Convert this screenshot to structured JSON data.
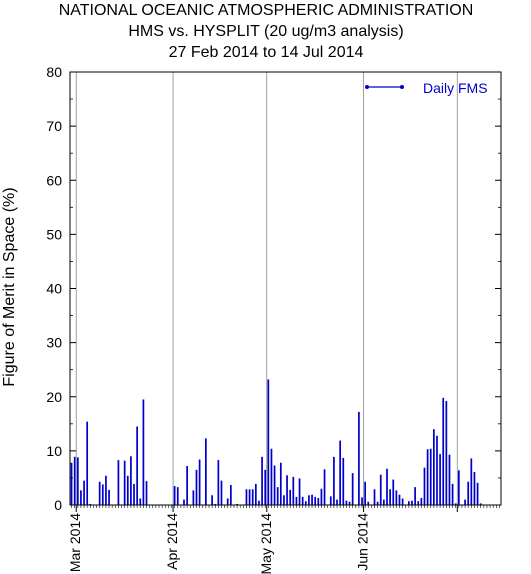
{
  "chart_data": {
    "type": "bar",
    "title": [
      "NATIONAL OCEANIC ATMOSPHERIC ADMINISTRATION",
      "HMS vs. HYSPLIT (20 ug/m3 analysis)",
      "27 Feb 2014 to 14 Jul 2014"
    ],
    "xlabel": "",
    "ylabel": "Figure of Merit in Space (%)",
    "ylim": [
      0,
      80
    ],
    "yticks": [
      0,
      10,
      20,
      30,
      40,
      50,
      60,
      70,
      80
    ],
    "x_start": "2014-02-27",
    "x_end": "2014-07-14",
    "month_ticks": [
      {
        "date": "2014-03-01",
        "label": "Mar 2014"
      },
      {
        "date": "2014-04-01",
        "label": "Apr 2014"
      },
      {
        "date": "2014-05-01",
        "label": "May 2014"
      },
      {
        "date": "2014-06-01",
        "label": "Jun 2014"
      },
      {
        "date": "2014-07-01",
        "label": ""
      }
    ],
    "grid": "vertical-monthly",
    "legend_position": "top-right",
    "series": [
      {
        "name": "Daily FMS",
        "color": "#0000cc",
        "x": [
          "2014-02-27",
          "2014-02-28",
          "2014-03-01",
          "2014-03-02",
          "2014-03-03",
          "2014-03-04",
          "2014-03-05",
          "2014-03-08",
          "2014-03-09",
          "2014-03-10",
          "2014-03-11",
          "2014-03-14",
          "2014-03-16",
          "2014-03-17",
          "2014-03-18",
          "2014-03-19",
          "2014-03-20",
          "2014-03-21",
          "2014-03-22",
          "2014-03-23",
          "2014-04-01",
          "2014-04-02",
          "2014-04-04",
          "2014-04-05",
          "2014-04-07",
          "2014-04-08",
          "2014-04-09",
          "2014-04-11",
          "2014-04-13",
          "2014-04-14",
          "2014-04-15",
          "2014-04-16",
          "2014-04-18",
          "2014-04-19",
          "2014-04-21",
          "2014-04-24",
          "2014-04-25",
          "2014-04-26",
          "2014-04-27",
          "2014-04-28",
          "2014-04-29",
          "2014-04-30",
          "2014-05-01",
          "2014-05-02",
          "2014-05-03",
          "2014-05-04",
          "2014-05-05",
          "2014-05-06",
          "2014-05-07",
          "2014-05-08",
          "2014-05-09",
          "2014-05-10",
          "2014-05-11",
          "2014-05-12",
          "2014-05-13",
          "2014-05-14",
          "2014-05-15",
          "2014-05-16",
          "2014-05-17",
          "2014-05-18",
          "2014-05-19",
          "2014-05-21",
          "2014-05-22",
          "2014-05-23",
          "2014-05-24",
          "2014-05-25",
          "2014-05-26",
          "2014-05-27",
          "2014-05-28",
          "2014-05-30",
          "2014-05-31",
          "2014-06-01",
          "2014-06-02",
          "2014-06-04",
          "2014-06-05",
          "2014-06-06",
          "2014-06-07",
          "2014-06-08",
          "2014-06-09",
          "2014-06-10",
          "2014-06-11",
          "2014-06-12",
          "2014-06-13",
          "2014-06-15",
          "2014-06-16",
          "2014-06-17",
          "2014-06-18",
          "2014-06-19",
          "2014-06-20",
          "2014-06-21",
          "2014-06-22",
          "2014-06-23",
          "2014-06-24",
          "2014-06-25",
          "2014-06-26",
          "2014-06-27",
          "2014-06-28",
          "2014-06-29",
          "2014-06-30",
          "2014-07-01",
          "2014-07-03",
          "2014-07-04",
          "2014-07-05",
          "2014-07-06",
          "2014-07-07",
          "2014-07-08"
        ],
        "values": [
          7.8,
          8.9,
          8.8,
          2.7,
          4.5,
          15.4,
          0.2,
          4.3,
          3.8,
          5.4,
          2.8,
          8.3,
          8.2,
          5.4,
          9.0,
          3.9,
          14.5,
          1.2,
          19.5,
          4.4,
          3.5,
          3.3,
          1.0,
          7.2,
          2.7,
          6.5,
          8.4,
          12.3,
          1.8,
          0.2,
          8.3,
          4.5,
          1.2,
          3.7,
          0.2,
          2.9,
          2.9,
          2.9,
          3.9,
          0.8,
          8.9,
          6.5,
          23.2,
          10.4,
          7.3,
          3.3,
          7.8,
          1.8,
          5.5,
          2.8,
          5.2,
          1.5,
          4.9,
          1.5,
          0.7,
          1.8,
          1.9,
          1.5,
          1.3,
          3.0,
          6.6,
          1.6,
          8.9,
          1.0,
          11.9,
          8.7,
          0.8,
          0.6,
          5.9,
          17.2,
          1.4,
          4.3,
          0.6,
          2.9,
          0.6,
          5.6,
          1.0,
          6.7,
          2.9,
          4.7,
          2.7,
          1.9,
          1.2,
          0.7,
          0.8,
          3.3,
          0.7,
          1.3,
          6.9,
          10.3,
          10.4,
          14.0,
          12.8,
          9.4,
          19.8,
          19.2,
          9.3,
          3.9,
          0.3,
          6.4,
          1.0,
          4.3,
          8.6,
          6.1,
          4.1,
          0.3
        ]
      }
    ]
  }
}
